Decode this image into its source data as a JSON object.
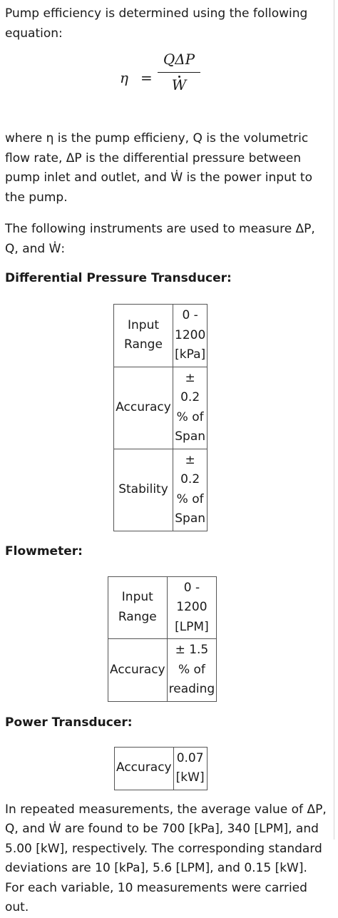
{
  "intro": "Pump efficiency is determined using the following equation:",
  "equation": {
    "lhs": "η",
    "equals": "=",
    "numerator": "QΔP",
    "denominator": "W"
  },
  "definition": "where η is the pump efficieny, Q is the volumetric flow rate, ΔP is the differential pressure between pump inlet and outlet, and Ẇ is the power input to the pump.",
  "instruments_intro": "The following instruments are used to measure ΔP, Q, and Ẇ:",
  "dp_transducer": {
    "heading": "Differential Pressure Transducer:",
    "rows": [
      {
        "label": "Input Range",
        "value": "0 - 1200 [kPa]"
      },
      {
        "label": "Accuracy",
        "value": "± 0.2 % of Span"
      },
      {
        "label": "Stability",
        "value": "± 0.2 % of Span"
      }
    ]
  },
  "flowmeter": {
    "heading": "Flowmeter:",
    "rows": [
      {
        "label": "Input Range",
        "value": "0 - 1200 [LPM]"
      },
      {
        "label": "Accuracy",
        "value": "± 1.5 % of reading"
      }
    ]
  },
  "power_transducer": {
    "heading": "Power Transducer:",
    "rows": [
      {
        "label": "Accuracy",
        "value": "0.07 [kW]"
      }
    ]
  },
  "measurements": "In repeated measurements, the average value of ΔP, Q, and Ẇ are found to be 700 [kPa], 340 [LPM], and 5.00 [kW], respectively. The corresponding standard deviations are 10 [kPa], 5.6 [LPM], and 0.15 [kW]. For each variable, 10 measurements were carried out."
}
